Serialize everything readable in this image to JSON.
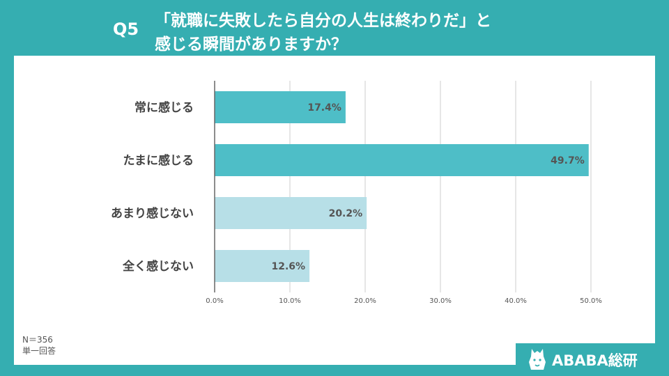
{
  "header": {
    "q_label": "Q5",
    "title_line1": "「就職に失敗したら自分の人生は終わりだ」と",
    "title_line2": "感じる瞬間がありますか？"
  },
  "note": {
    "n_label": "N＝356",
    "type_label": "単一回答"
  },
  "logo": {
    "text": "ABABA総研"
  },
  "colors": {
    "background": "#35aeb1",
    "bar_dark": "#4ebec7",
    "bar_light": "#b7dfe7",
    "grid": "#cccccc",
    "axis": "#666666"
  },
  "chart_data": {
    "type": "bar",
    "orientation": "horizontal",
    "categories": [
      "常に感じる",
      "たまに感じる",
      "あまり感じない",
      "全く感じない"
    ],
    "values": [
      17.4,
      49.7,
      20.2,
      12.6
    ],
    "value_labels": [
      "17.4%",
      "49.7%",
      "20.2%",
      "12.6%"
    ],
    "bar_colors": [
      "#4ebec7",
      "#4ebec7",
      "#b7dfe7",
      "#b7dfe7"
    ],
    "xlim": [
      0,
      50
    ],
    "xticks": [
      "0.0%",
      "10.0%",
      "20.0%",
      "30.0%",
      "40.0%",
      "50.0%"
    ],
    "grid": true,
    "legend": "none"
  }
}
